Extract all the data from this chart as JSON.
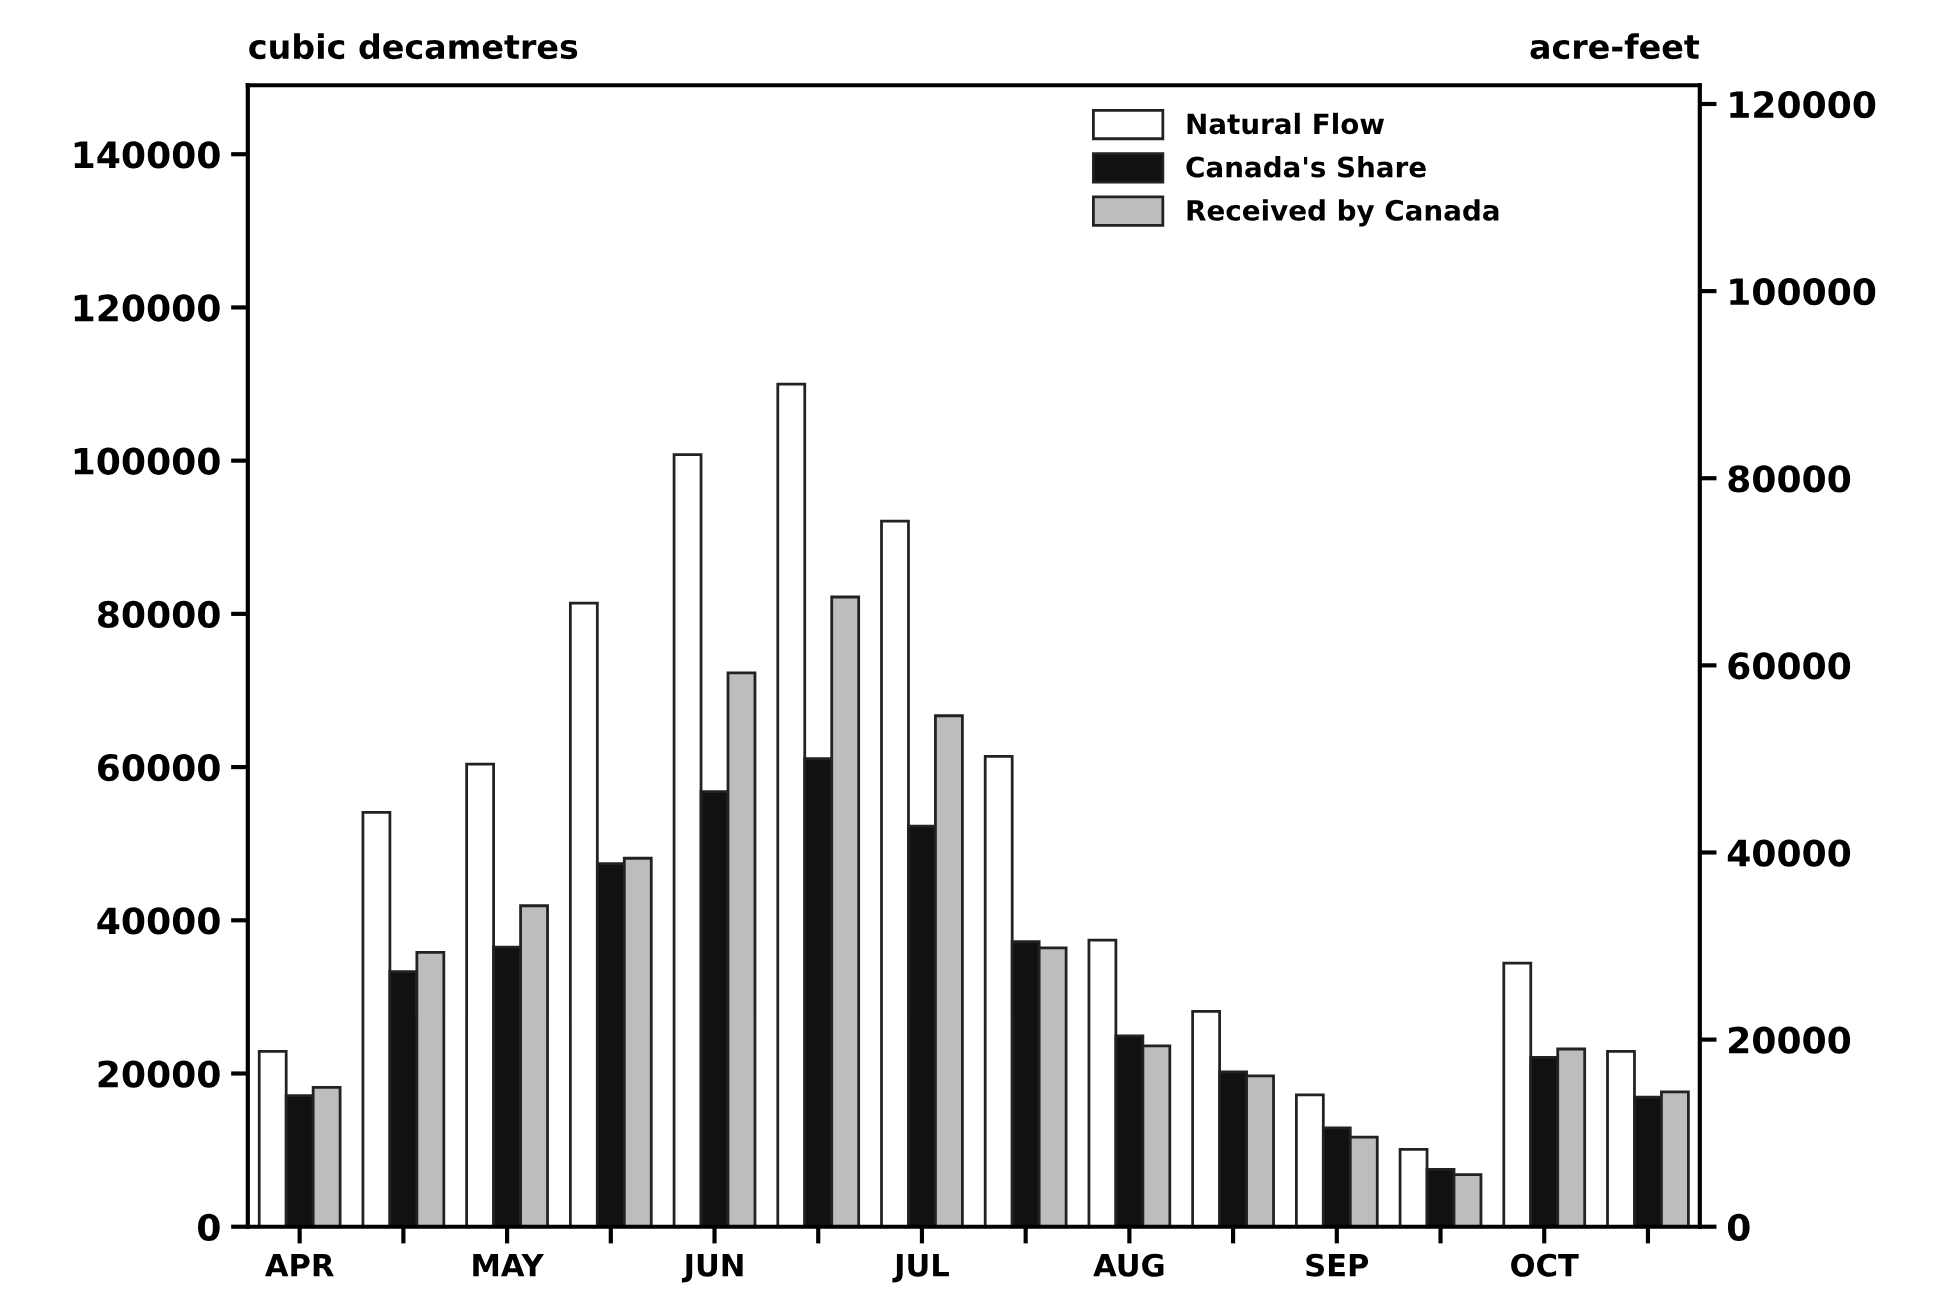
{
  "chart_data": {
    "type": "bar",
    "ylabel": "cubic decametres",
    "y2label": "acre-feet",
    "categories": [
      "APR",
      null,
      "MAY",
      null,
      "JUN",
      null,
      "JUL",
      null,
      "AUG",
      null,
      "SEP",
      null,
      "OCT",
      null
    ],
    "series": [
      {
        "name": "Natural Flow",
        "color": "#ffffff",
        "values": [
          22900,
          54100,
          60400,
          81400,
          100800,
          110000,
          92100,
          61400,
          37400,
          28100,
          17200,
          10100,
          34400,
          22900
        ]
      },
      {
        "name": "Canada's Share",
        "color": "#111111",
        "values": [
          17100,
          33300,
          36500,
          47400,
          56800,
          61100,
          52300,
          37200,
          24900,
          20200,
          12900,
          7500,
          22100,
          16900
        ]
      },
      {
        "name": "Received by Canada",
        "color": "#bdbdbd",
        "values": [
          18200,
          35800,
          41900,
          48100,
          72300,
          82200,
          66700,
          36400,
          23600,
          19700,
          11700,
          6800,
          23200,
          17600
        ]
      }
    ],
    "ylim": [
      0,
      149000
    ],
    "yticks": [
      0,
      20000,
      40000,
      60000,
      80000,
      100000,
      120000,
      140000
    ],
    "y2lim": [
      0,
      122000
    ],
    "y2ticks": [
      0,
      20000,
      40000,
      60000,
      80000,
      100000,
      120000
    ],
    "grid": false,
    "legend": "top right"
  }
}
